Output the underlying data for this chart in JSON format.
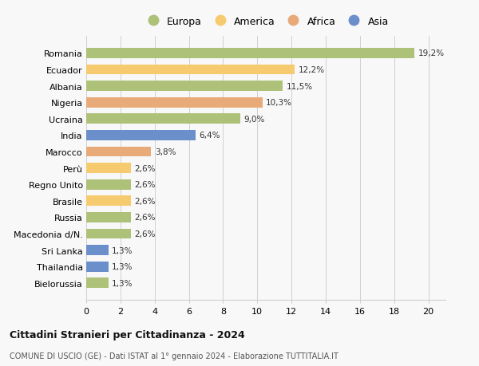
{
  "countries": [
    "Romania",
    "Ecuador",
    "Albania",
    "Nigeria",
    "Ucraina",
    "India",
    "Marocco",
    "Perù",
    "Regno Unito",
    "Brasile",
    "Russia",
    "Macedonia d/N.",
    "Sri Lanka",
    "Thailandia",
    "Bielorussia"
  ],
  "values": [
    19.2,
    12.2,
    11.5,
    10.3,
    9.0,
    6.4,
    3.8,
    2.6,
    2.6,
    2.6,
    2.6,
    2.6,
    1.3,
    1.3,
    1.3
  ],
  "continents": [
    "Europa",
    "America",
    "Europa",
    "Africa",
    "Europa",
    "Asia",
    "Africa",
    "America",
    "Europa",
    "America",
    "Europa",
    "Europa",
    "Asia",
    "Asia",
    "Europa"
  ],
  "labels": [
    "19,2%",
    "12,2%",
    "11,5%",
    "10,3%",
    "9,0%",
    "6,4%",
    "3,8%",
    "2,6%",
    "2,6%",
    "2,6%",
    "2,6%",
    "2,6%",
    "1,3%",
    "1,3%",
    "1,3%"
  ],
  "colors": {
    "Europa": "#adc178",
    "America": "#f6ca6e",
    "Africa": "#e8aa78",
    "Asia": "#6b8fca"
  },
  "legend_order": [
    "Europa",
    "America",
    "Africa",
    "Asia"
  ],
  "xlim": [
    0,
    21
  ],
  "xticks": [
    0,
    2,
    4,
    6,
    8,
    10,
    12,
    14,
    16,
    18,
    20
  ],
  "title": "Cittadini Stranieri per Cittadinanza - 2024",
  "subtitle": "COMUNE DI USCIO (GE) - Dati ISTAT al 1° gennaio 2024 - Elaborazione TUTTITALIA.IT",
  "background_color": "#f8f8f8",
  "grid_color": "#d0d0d0",
  "bar_height": 0.62
}
